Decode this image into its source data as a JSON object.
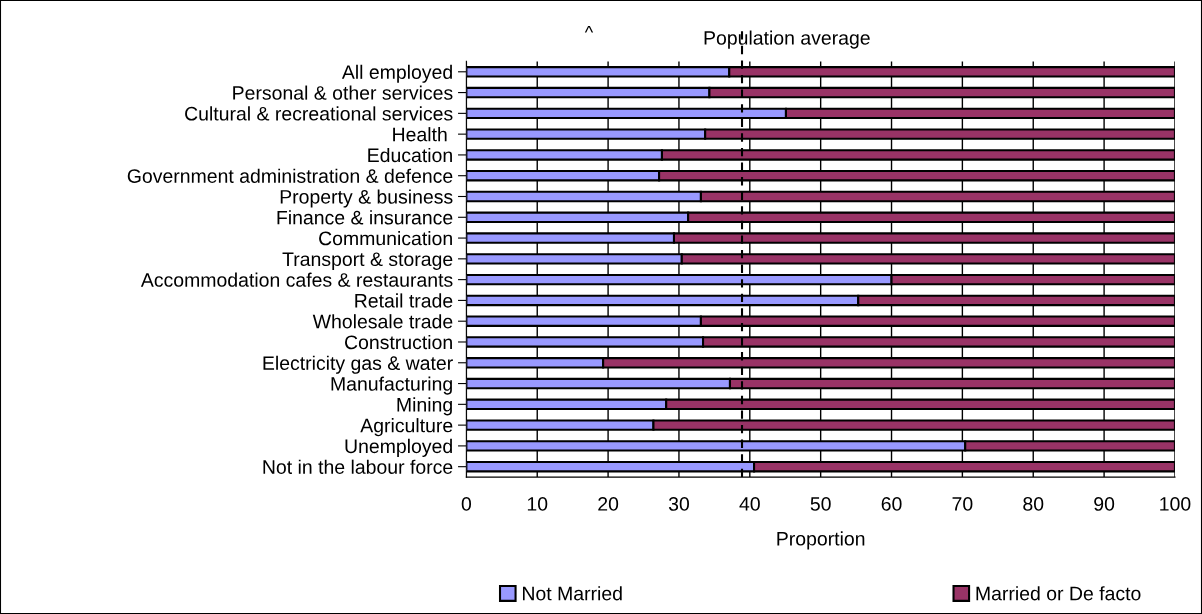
{
  "chart_data": {
    "type": "bar",
    "orientation": "horizontal",
    "stacked": true,
    "categories": [
      "All employed",
      "Personal & other services",
      "Cultural & recreational services",
      "Health ",
      "Education",
      "Government administration & defence",
      "Property & business",
      "Finance & insurance",
      "Communication",
      "Transport & storage",
      "Accommodation cafes & restaurants",
      "Retail trade",
      "Wholesale trade",
      "Construction",
      "Electricity gas & water",
      "Manufacturing",
      "Mining",
      "Agriculture",
      "Unemployed",
      "Not in the labour force"
    ],
    "series": [
      {
        "name": "Not Married",
        "color": "#9999ff",
        "values": [
          37.1,
          34.3,
          45.1,
          33.7,
          27.6,
          27.2,
          33.1,
          31.3,
          29.3,
          30.4,
          60.0,
          55.3,
          33.1,
          33.4,
          19.3,
          37.2,
          28.2,
          26.4,
          70.4,
          40.6
        ]
      },
      {
        "name": "Married or De facto",
        "color": "#993366",
        "values": [
          62.9,
          65.7,
          54.9,
          66.3,
          72.4,
          72.8,
          66.9,
          68.7,
          70.7,
          69.6,
          40.0,
          44.7,
          66.9,
          66.6,
          80.7,
          62.8,
          71.8,
          73.6,
          29.6,
          59.4
        ]
      }
    ],
    "xlabel": "Proportion",
    "xlim": [
      0,
      100
    ],
    "xticks": [
      0,
      10,
      20,
      30,
      40,
      50,
      60,
      70,
      80,
      90,
      100
    ],
    "grid": "x",
    "legend": "bottom",
    "ref_lines": [
      {
        "axis": "x",
        "value": 38.9,
        "label": "Population average",
        "color": "#000000",
        "line_style": "dashed"
      }
    ],
    "annotations": [
      "^"
    ]
  }
}
